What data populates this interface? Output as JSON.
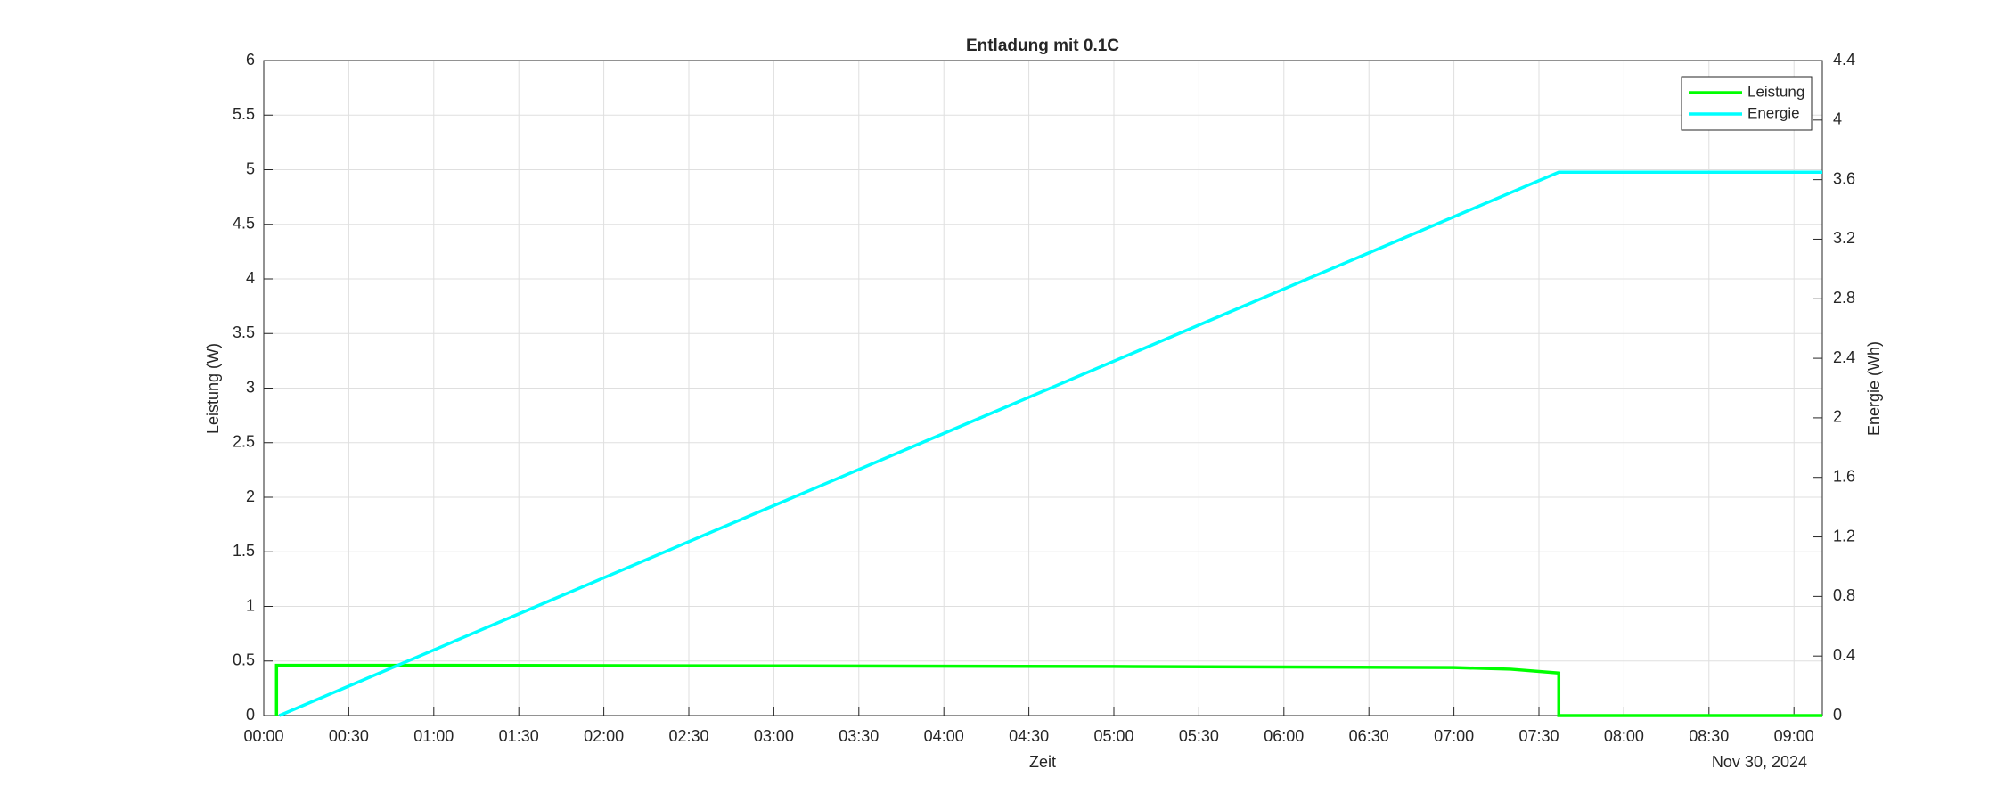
{
  "chart_data": {
    "type": "line",
    "title": "Entladung mit 0.1C",
    "xlabel": "Zeit",
    "x_date_label": "Nov 30, 2024",
    "ylabel": "Leistung (W)",
    "y2label": "Energie (Wh)",
    "xlim": [
      0,
      550
    ],
    "ylim": [
      0,
      6
    ],
    "y2lim": [
      0,
      4.4
    ],
    "xticks": [
      {
        "value": 0,
        "label": "00:00"
      },
      {
        "value": 30,
        "label": "00:30"
      },
      {
        "value": 60,
        "label": "01:00"
      },
      {
        "value": 90,
        "label": "01:30"
      },
      {
        "value": 120,
        "label": "02:00"
      },
      {
        "value": 150,
        "label": "02:30"
      },
      {
        "value": 180,
        "label": "03:00"
      },
      {
        "value": 210,
        "label": "03:30"
      },
      {
        "value": 240,
        "label": "04:00"
      },
      {
        "value": 270,
        "label": "04:30"
      },
      {
        "value": 300,
        "label": "05:00"
      },
      {
        "value": 330,
        "label": "05:30"
      },
      {
        "value": 360,
        "label": "06:00"
      },
      {
        "value": 390,
        "label": "06:30"
      },
      {
        "value": 420,
        "label": "07:00"
      },
      {
        "value": 450,
        "label": "07:30"
      },
      {
        "value": 480,
        "label": "08:00"
      },
      {
        "value": 510,
        "label": "08:30"
      },
      {
        "value": 540,
        "label": "09:00"
      }
    ],
    "yticks": [
      0,
      0.5,
      1,
      1.5,
      2,
      2.5,
      3,
      3.5,
      4,
      4.5,
      5,
      5.5,
      6
    ],
    "y2ticks": [
      0,
      0.4,
      0.8,
      1.2,
      1.6,
      2,
      2.4,
      2.8,
      3.2,
      3.6,
      4,
      4.4
    ],
    "grid": true,
    "legend": "northeast",
    "series": [
      {
        "name": "Leistung",
        "color": "#00ff00",
        "x": [
          4.5,
          4.5,
          60,
          180,
          300,
          420,
          440,
          457,
          457,
          550
        ],
        "values": [
          0,
          0.46,
          0.46,
          0.455,
          0.45,
          0.44,
          0.425,
          0.39,
          0,
          0
        ]
      },
      {
        "name": "Energie",
        "color": "#00ffff",
        "axis": "y2",
        "x": [
          5.5,
          457,
          550
        ],
        "values": [
          0,
          3.65,
          3.65
        ]
      }
    ]
  }
}
